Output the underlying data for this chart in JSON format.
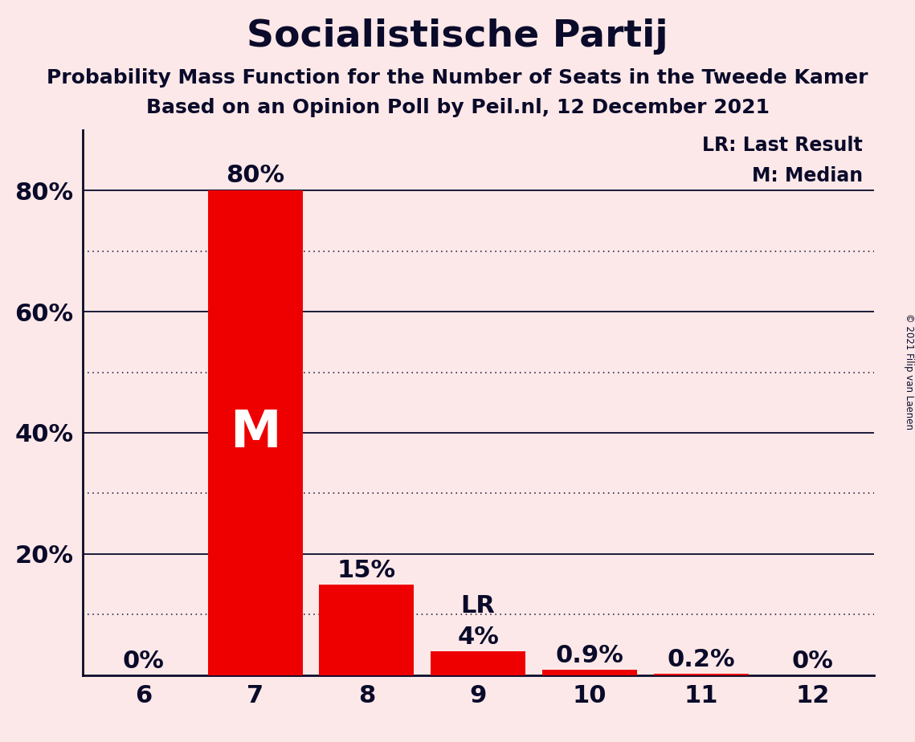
{
  "title": "Socialistische Partij",
  "subtitle1": "Probability Mass Function for the Number of Seats in the Tweede Kamer",
  "subtitle2": "Based on an Opinion Poll by Peil.nl, 12 December 2021",
  "copyright": "© 2021 Filip van Laenen",
  "categories": [
    6,
    7,
    8,
    9,
    10,
    11,
    12
  ],
  "values": [
    0.0,
    80.0,
    15.0,
    4.0,
    0.9,
    0.2,
    0.0
  ],
  "bar_color": "#ee0000",
  "median_bar_idx": 1,
  "lr_bar_idx": 3,
  "median_label": "M",
  "legend_lr": "LR: Last Result",
  "legend_m": "M: Median",
  "background_color": "#fce8e8",
  "text_color": "#0a0a2a",
  "solid_gridlines": [
    20,
    40,
    60,
    80
  ],
  "dotted_gridlines": [
    10,
    30,
    50,
    70
  ],
  "title_fontsize": 34,
  "subtitle_fontsize": 18,
  "label_fontsize": 22,
  "tick_fontsize": 22,
  "legend_fontsize": 17,
  "m_fontsize": 46,
  "bar_width": 0.85
}
